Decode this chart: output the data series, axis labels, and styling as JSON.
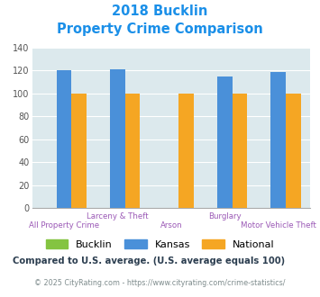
{
  "title_line1": "2018 Bucklin",
  "title_line2": "Property Crime Comparison",
  "categories": [
    "All Property Crime",
    "Larceny & Theft",
    "Arson",
    "Burglary",
    "Motor Vehicle Theft"
  ],
  "bucklin": [
    0,
    0,
    0,
    0,
    0
  ],
  "kansas": [
    120,
    121,
    0,
    115,
    119
  ],
  "national": [
    100,
    100,
    100,
    100,
    100
  ],
  "bar_width": 0.28,
  "ylim": [
    0,
    140
  ],
  "yticks": [
    0,
    20,
    40,
    60,
    80,
    100,
    120,
    140
  ],
  "bucklin_color": "#84c441",
  "kansas_color": "#4a90d9",
  "national_color": "#f5a623",
  "bg_color": "#dce9ed",
  "title_color": "#1a8fe8",
  "axis_label_color": "#9b59b6",
  "legend_label_bucklin": "Bucklin",
  "legend_label_kansas": "Kansas",
  "legend_label_national": "National",
  "footnote1": "Compared to U.S. average. (U.S. average equals 100)",
  "footnote2": "© 2025 CityRating.com - https://www.cityrating.com/crime-statistics/",
  "footnote1_color": "#2c3e50",
  "footnote1_link_color": "#1a8fe8",
  "footnote2_color": "#7f8c8d"
}
